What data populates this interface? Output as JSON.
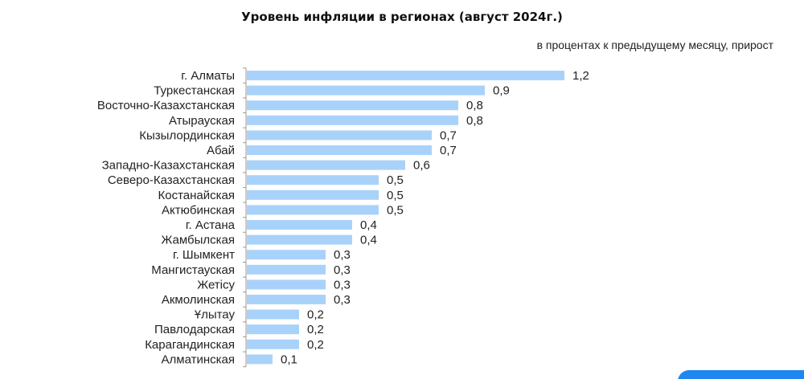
{
  "title": "Уровень инфляции в регионах (август 2024г.)",
  "subtitle": "в процентах к предыдущему месяцу, прирост",
  "colors": {
    "bar": "#a9d2fb",
    "axis": "#9a9a9a",
    "accent": "#1e88f0"
  },
  "chart_data": {
    "type": "bar",
    "orientation": "horizontal",
    "categories": [
      "г. Алматы",
      "Туркестанская",
      "Восточно-Казахстанская",
      "Атырауская",
      "Кызылординская",
      "Абай",
      "Западно-Казахстанская",
      "Северо-Казахстанская",
      "Костанайская",
      "Актюбинская",
      "г. Астана",
      "Жамбылская",
      "г. Шымкент",
      "Мангистауская",
      "Жетiсу",
      "Акмолинская",
      "Ұлытау",
      "Павлодарская",
      "Карагандинская",
      "Алматинская"
    ],
    "values": [
      1.2,
      0.9,
      0.8,
      0.8,
      0.7,
      0.7,
      0.6,
      0.5,
      0.5,
      0.5,
      0.4,
      0.4,
      0.3,
      0.3,
      0.3,
      0.3,
      0.2,
      0.2,
      0.2,
      0.1
    ],
    "value_labels": [
      "1,2",
      "0,9",
      "0,8",
      "0,8",
      "0,7",
      "0,7",
      "0,6",
      "0,5",
      "0,5",
      "0,5",
      "0,4",
      "0,4",
      "0,3",
      "0,3",
      "0,3",
      "0,3",
      "0,2",
      "0,2",
      "0,2",
      "0,1"
    ],
    "xlim": [
      0,
      1.2
    ],
    "grid": false,
    "legend": "none"
  }
}
